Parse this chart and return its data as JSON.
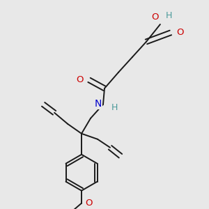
{
  "bg_color": "#e8e8e8",
  "bond_color": "#1a1a1a",
  "lw": 1.4,
  "doff": 3.5,
  "colors": {
    "O": "#cc0000",
    "N": "#0000cc",
    "H": "#4a9a9a"
  },
  "figsize": [
    3.0,
    3.0
  ],
  "dpi": 100
}
